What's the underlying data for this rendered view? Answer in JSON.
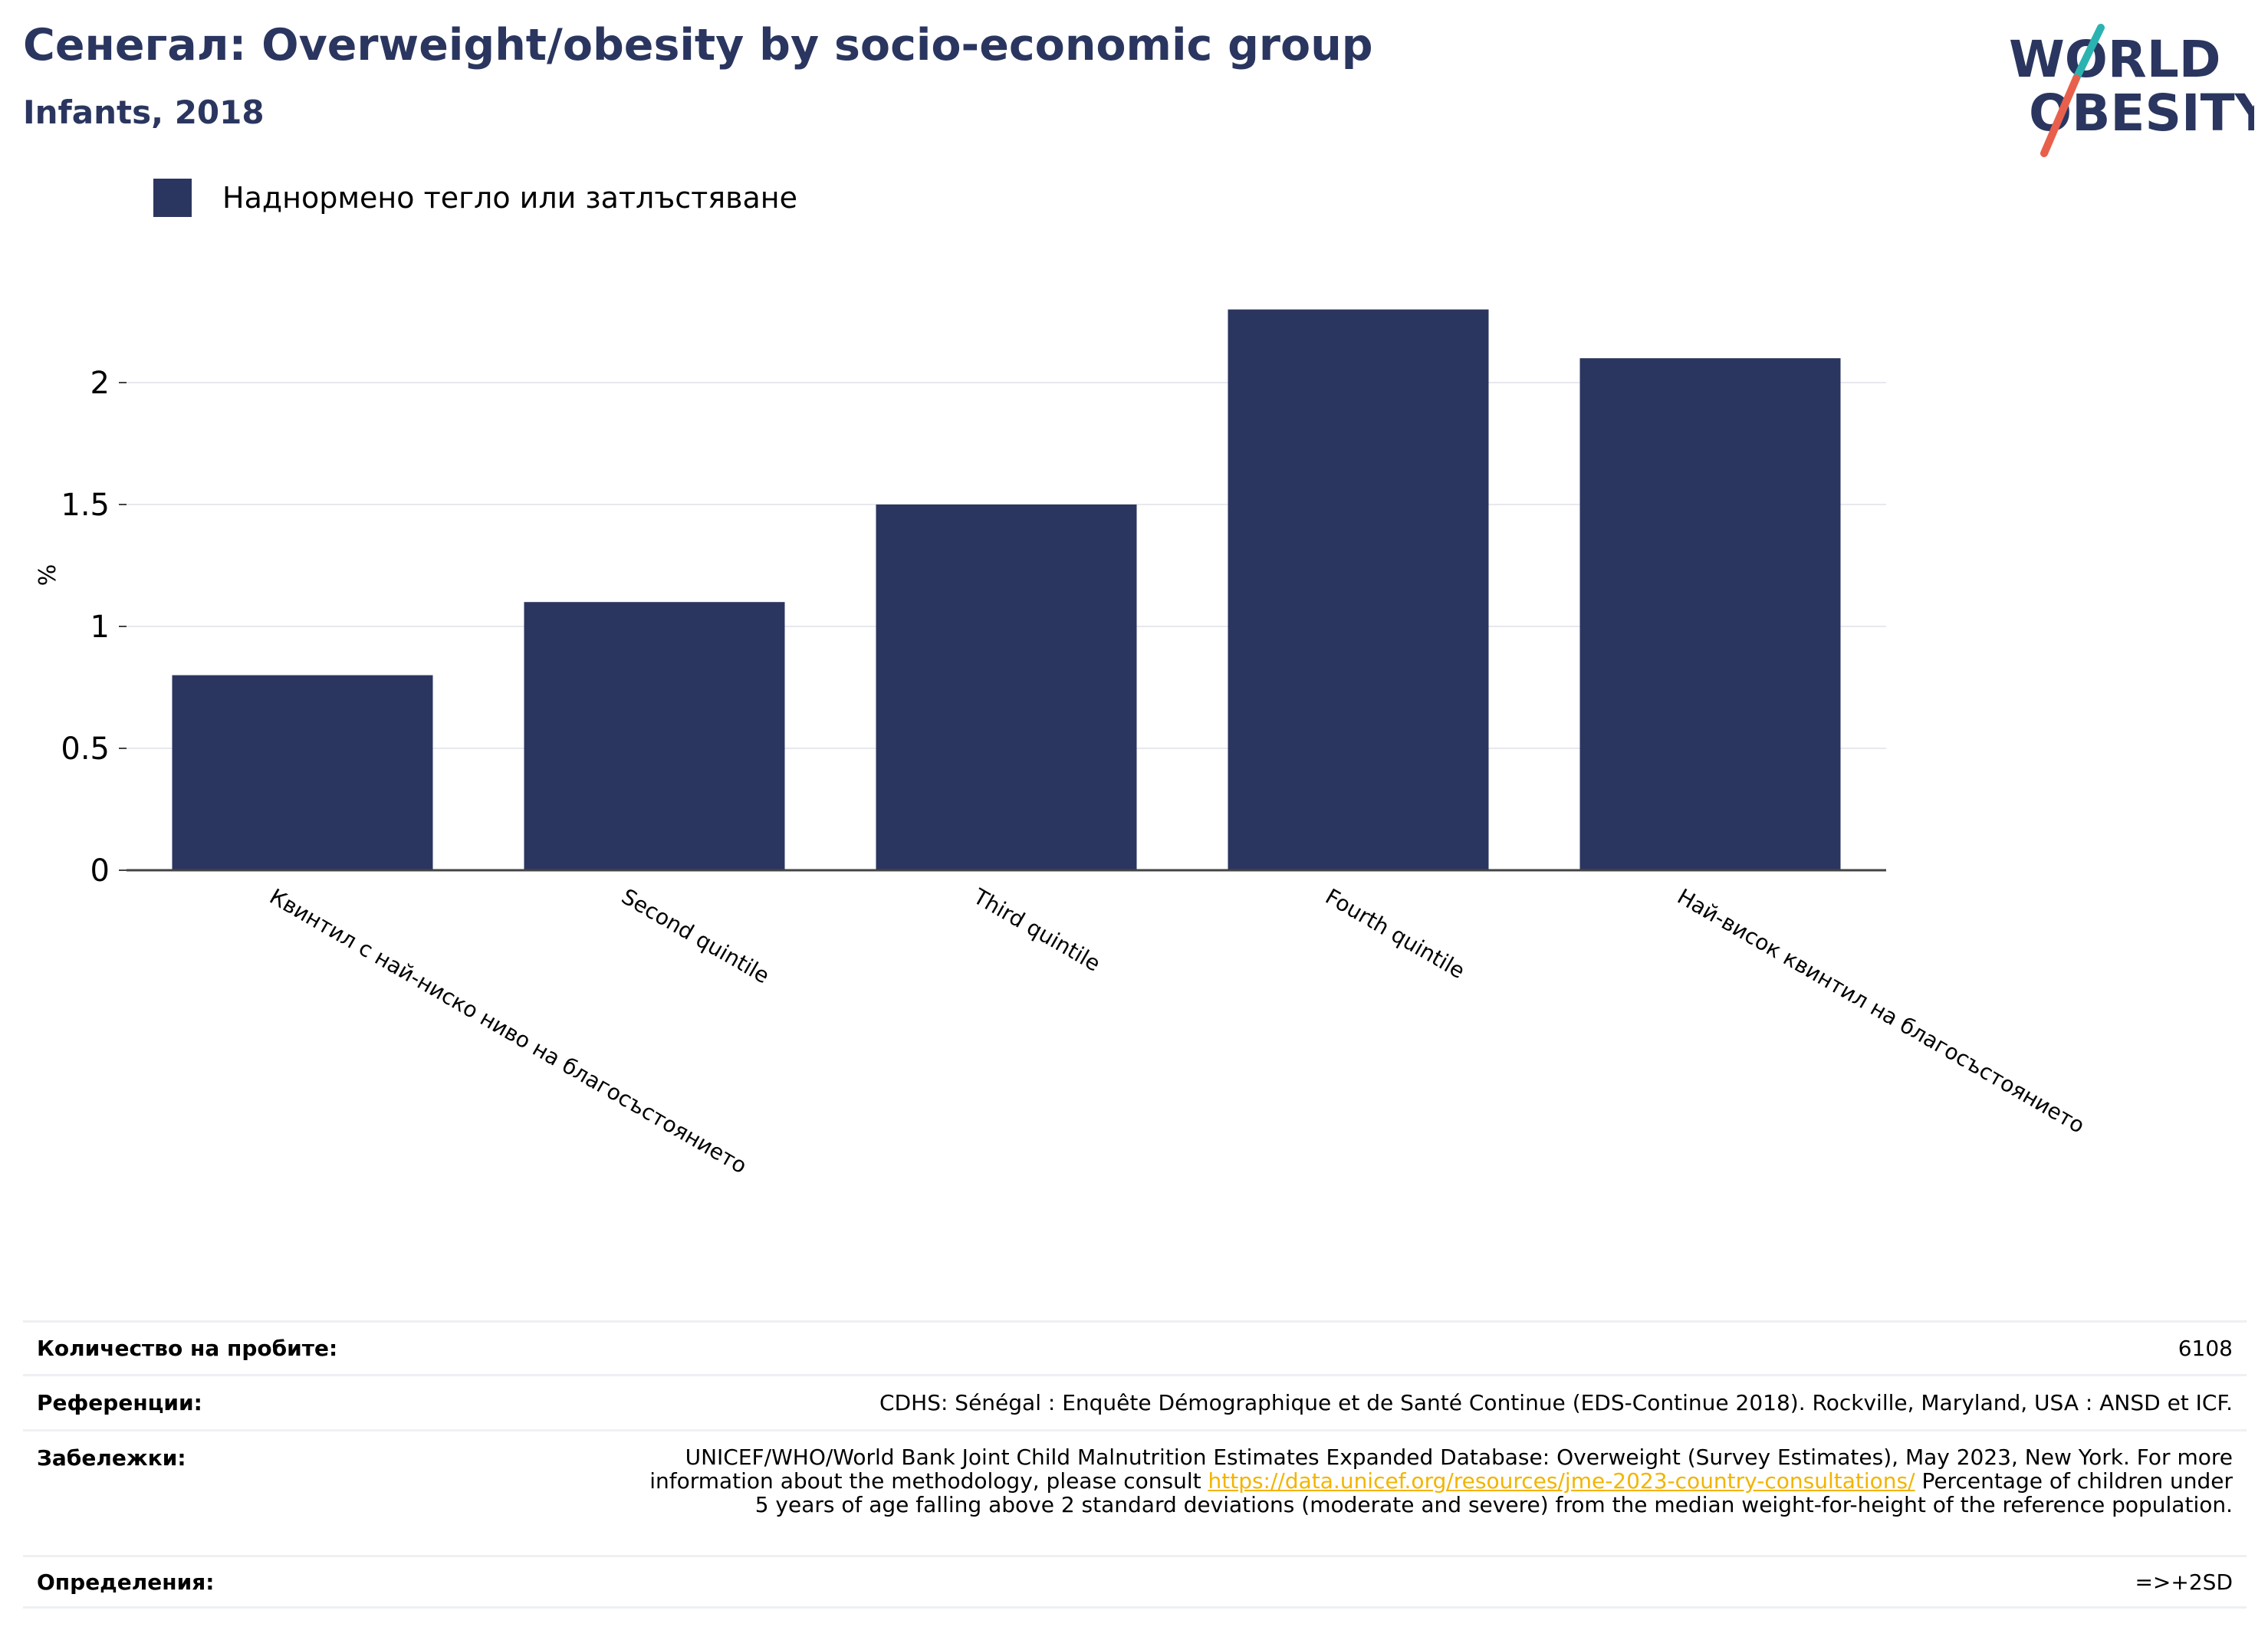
{
  "header": {
    "title": "Сенегал: Overweight/obesity by socio-economic group",
    "subtitle": "Infants, 2018"
  },
  "logo": {
    "line1": "WORLD",
    "line2": "OBESITY",
    "colors": {
      "text": "#2a365f",
      "slash_top": "#2bb3b1",
      "slash_bottom": "#e8604c"
    }
  },
  "colors": {
    "bar": "#2a365f",
    "grid": "#e8e8ee",
    "axis": "#444444",
    "link": "#f2b400"
  },
  "chart_data": {
    "type": "bar",
    "categories": [
      "Квинтил с най-ниско ниво на благосъстоянието",
      "Second quintile",
      "Third quintile",
      "Fourth quintile",
      "Най-висок квинтил на благосъстоянието"
    ],
    "series": [
      {
        "name": "Наднормено тегло или затлъстяване",
        "values": [
          0.8,
          1.1,
          1.5,
          2.3,
          2.1
        ]
      }
    ],
    "ylabel": "%",
    "ylim": [
      0,
      2.4
    ],
    "yticks": [
      0,
      0.5,
      1,
      1.5,
      2
    ],
    "ytick_labels": [
      "0",
      "0.5",
      "1",
      "1.5",
      "2"
    ],
    "grid": true,
    "legend": "top-left"
  },
  "info": {
    "sample_label": "Количество на пробите:",
    "sample_value": "6108",
    "references_label": "Референции:",
    "references_value": "CDHS: Sénégal : Enquête Démographique et de Santé Continue (EDS-Continue 2018). Rockville, Maryland, USA : ANSD et ICF.",
    "notes_label": "Забележки:",
    "notes_before": "UNICEF/WHO/World Bank Joint Child Malnutrition Estimates Expanded Database: Overweight (Survey Estimates), May 2023, New York. For more information about the methodology, please consult",
    "notes_link": "https://data.unicef.org/resources/jme-2023-country-consultations/",
    "notes_after": "Percentage of children under 5 years of age falling above 2 standard deviations (moderate and severe) from the median weight-for-height of the reference population.",
    "definitions_label": "Определения:",
    "definitions_value": "=>+2SD"
  }
}
